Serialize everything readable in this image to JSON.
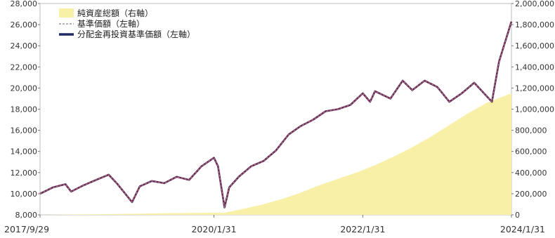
{
  "chart_data": {
    "type": "line",
    "x_axis": {
      "ticks": [
        "2017/9/29",
        "2020/1/31",
        "2022/1/31",
        "2024/1/31"
      ],
      "range": [
        "2017/9/29",
        "2024/1/31"
      ]
    },
    "y_left": {
      "ticks": [
        "8,000",
        "10,000",
        "12,000",
        "14,000",
        "16,000",
        "18,000",
        "20,000",
        "22,000",
        "24,000",
        "26,000",
        "28,000"
      ],
      "ylim": [
        8000,
        28000
      ]
    },
    "y_right": {
      "ticks": [
        "0",
        "200,000",
        "400,000",
        "600,000",
        "800,000",
        "1,000,000",
        "1,200,000",
        "1,400,000",
        "1,600,000",
        "1,800,000",
        "2,000,000"
      ],
      "ylim": [
        0,
        2000000
      ]
    },
    "legend": [
      {
        "name": "純資産総額（右軸）",
        "kind": "area",
        "color": "#f9f0a8"
      },
      {
        "name": "基準価額（左軸）",
        "kind": "dashed",
        "color": "#9a9a9a"
      },
      {
        "name": "分配金再投資基準価額（左軸）",
        "kind": "line",
        "color": "#1d2a66"
      }
    ],
    "series": [
      {
        "name": "純資産総額（右軸）",
        "axis": "right",
        "color": "#f9f0a8",
        "x": [
          "2017/9/29",
          "2018/6/1",
          "2019/1/1",
          "2019/6/1",
          "2020/1/31",
          "2020/3/20",
          "2020/7/1",
          "2020/10/1",
          "2021/1/1",
          "2021/4/1",
          "2021/7/1",
          "2021/10/1",
          "2022/1/1",
          "2022/4/1",
          "2022/7/1",
          "2022/10/1",
          "2023/1/1",
          "2023/4/1",
          "2023/7/1",
          "2023/10/1",
          "2024/1/31"
        ],
        "values": [
          0,
          5000,
          10000,
          15000,
          20000,
          18000,
          60000,
          100000,
          150000,
          210000,
          280000,
          340000,
          400000,
          470000,
          550000,
          640000,
          740000,
          850000,
          960000,
          1060000,
          1150000
        ]
      },
      {
        "name": "分配金再投資基準価額（左軸）",
        "axis": "left",
        "color": "#6b2050",
        "x": [
          "2017/9/29",
          "2017/12/1",
          "2018/2/1",
          "2018/3/1",
          "2018/5/1",
          "2018/7/1",
          "2018/9/1",
          "2018/10/15",
          "2018/12/25",
          "2019/2/1",
          "2019/4/1",
          "2019/6/1",
          "2019/8/1",
          "2019/10/1",
          "2019/12/1",
          "2020/1/31",
          "2020/2/20",
          "2020/3/23",
          "2020/4/15",
          "2020/6/1",
          "2020/8/1",
          "2020/10/1",
          "2020/12/1",
          "2021/2/1",
          "2021/4/1",
          "2021/6/1",
          "2021/8/1",
          "2021/10/1",
          "2021/12/1",
          "2022/1/31",
          "2022/3/8",
          "2022/4/1",
          "2022/6/16",
          "2022/8/15",
          "2022/10/1",
          "2022/12/1",
          "2023/2/1",
          "2023/4/1",
          "2023/6/1",
          "2023/8/1",
          "2023/10/27",
          "2023/12/1",
          "2024/1/31"
        ],
        "values": [
          10000,
          10600,
          10900,
          10200,
          10800,
          11300,
          11800,
          10900,
          9200,
          10700,
          11200,
          11000,
          11600,
          11300,
          12600,
          13400,
          12600,
          8700,
          10600,
          11600,
          12600,
          13100,
          14100,
          15600,
          16400,
          17000,
          17800,
          18000,
          18400,
          19500,
          18700,
          19700,
          19000,
          20700,
          19800,
          20700,
          20100,
          18700,
          19500,
          20500,
          18700,
          22500,
          26300
        ]
      },
      {
        "name": "基準価額（左軸）",
        "axis": "left",
        "color": "#9a9a9a",
        "x": [
          "2017/9/29",
          "2017/12/1",
          "2018/2/1",
          "2018/3/1",
          "2018/5/1",
          "2018/7/1",
          "2018/9/1",
          "2018/10/15",
          "2018/12/25",
          "2019/2/1",
          "2019/4/1",
          "2019/6/1",
          "2019/8/1",
          "2019/10/1",
          "2019/12/1",
          "2020/1/31",
          "2020/2/20",
          "2020/3/23",
          "2020/4/15",
          "2020/6/1",
          "2020/8/1",
          "2020/10/1",
          "2020/12/1",
          "2021/2/1",
          "2021/4/1",
          "2021/6/1",
          "2021/8/1",
          "2021/10/1",
          "2021/12/1",
          "2022/1/31",
          "2022/3/8",
          "2022/4/1",
          "2022/6/16",
          "2022/8/15",
          "2022/10/1",
          "2022/12/1",
          "2023/2/1",
          "2023/4/1",
          "2023/6/1",
          "2023/8/1",
          "2023/10/27",
          "2023/12/1",
          "2024/1/31"
        ],
        "values": [
          10000,
          10600,
          10900,
          10200,
          10800,
          11300,
          11800,
          10900,
          9200,
          10700,
          11200,
          11000,
          11600,
          11300,
          12600,
          13400,
          12600,
          8700,
          10600,
          11600,
          12600,
          13100,
          14100,
          15600,
          16400,
          17000,
          17800,
          18000,
          18400,
          19500,
          18700,
          19700,
          19000,
          20700,
          19800,
          20700,
          20100,
          18700,
          19500,
          20500,
          18700,
          22500,
          26300
        ]
      }
    ]
  }
}
